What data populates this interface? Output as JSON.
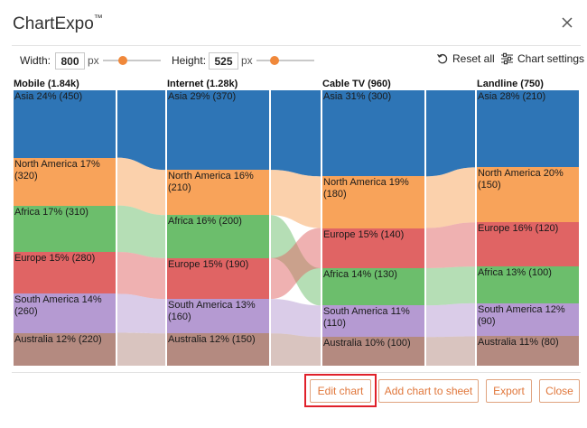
{
  "dialog": {
    "title": "ChartExpo",
    "trademark": "™"
  },
  "controls": {
    "width_label": "Width:",
    "width_value": "800",
    "height_label": "Height:",
    "height_value": "525",
    "unit": "px",
    "width_slider_fraction": 0.18,
    "height_slider_fraction": 0.15,
    "reset_label": "Reset all",
    "settings_label": "Chart settings"
  },
  "buttons": {
    "edit": "Edit chart",
    "add": "Add chart to sheet",
    "export": "Export",
    "close": "Close"
  },
  "colors": {
    "Asia": "#2e75b6",
    "North America": "#f8a35a",
    "Africa": "#6cbe6c",
    "Europe": "#e06464",
    "South America": "#b59ad2",
    "Australia": "#b48a80",
    "accent": "#f0883a",
    "highlight": "#e0202a"
  },
  "chart_data": {
    "type": "sankey",
    "region_order": [
      "Asia",
      "North America",
      "Africa",
      "Europe",
      "South America",
      "Australia"
    ],
    "columns": [
      {
        "header": "Mobile (1.84k)",
        "total": 1840,
        "segments": [
          {
            "region": "Asia",
            "label_line1": "Asia 24% (450)",
            "label_line2": "",
            "value": 450
          },
          {
            "region": "North America",
            "label_line1": "North America 17%",
            "label_line2": "(320)",
            "value": 320
          },
          {
            "region": "Africa",
            "label_line1": "Africa 17% (310)",
            "label_line2": "",
            "value": 310
          },
          {
            "region": "Europe",
            "label_line1": "Europe 15% (280)",
            "label_line2": "",
            "value": 280
          },
          {
            "region": "South America",
            "label_line1": "South America 14%",
            "label_line2": "(260)",
            "value": 260
          },
          {
            "region": "Australia",
            "label_line1": "Australia 12% (220)",
            "label_line2": "",
            "value": 220
          }
        ]
      },
      {
        "header": "Internet (1.28k)",
        "total": 1280,
        "segments": [
          {
            "region": "Asia",
            "label_line1": "Asia 29% (370)",
            "label_line2": "",
            "value": 370
          },
          {
            "region": "North America",
            "label_line1": "North America 16%",
            "label_line2": "(210)",
            "value": 210
          },
          {
            "region": "Africa",
            "label_line1": "Africa 16% (200)",
            "label_line2": "",
            "value": 200
          },
          {
            "region": "Europe",
            "label_line1": "Europe 15% (190)",
            "label_line2": "",
            "value": 190
          },
          {
            "region": "South America",
            "label_line1": "South America 13%",
            "label_line2": "(160)",
            "value": 160
          },
          {
            "region": "Australia",
            "label_line1": "Australia 12% (150)",
            "label_line2": "",
            "value": 150
          }
        ]
      },
      {
        "header": "Cable TV (960)",
        "total": 960,
        "segments": [
          {
            "region": "Asia",
            "label_line1": "Asia 31% (300)",
            "label_line2": "",
            "value": 300
          },
          {
            "region": "North America",
            "label_line1": "North America 19%",
            "label_line2": "(180)",
            "value": 180
          },
          {
            "region": "Europe",
            "label_line1": "Europe 15% (140)",
            "label_line2": "",
            "value": 140
          },
          {
            "region": "Africa",
            "label_line1": "Africa 14% (130)",
            "label_line2": "",
            "value": 130
          },
          {
            "region": "South America",
            "label_line1": "South America 11%",
            "label_line2": "(110)",
            "value": 110
          },
          {
            "region": "Australia",
            "label_line1": "Australia 10% (100)",
            "label_line2": "",
            "value": 100
          }
        ]
      },
      {
        "header": "Landline (750)",
        "total": 750,
        "segments": [
          {
            "region": "Asia",
            "label_line1": "Asia 28% (210)",
            "label_line2": "",
            "value": 210
          },
          {
            "region": "North America",
            "label_line1": "North America 20%",
            "label_line2": "(150)",
            "value": 150
          },
          {
            "region": "Europe",
            "label_line1": "Europe 16% (120)",
            "label_line2": "",
            "value": 120
          },
          {
            "region": "Africa",
            "label_line1": "Africa 13% (100)",
            "label_line2": "",
            "value": 100
          },
          {
            "region": "South America",
            "label_line1": "South America 12%",
            "label_line2": "(90)",
            "value": 90
          },
          {
            "region": "Australia",
            "label_line1": "Australia 11% (80)",
            "label_line2": "",
            "value": 80
          }
        ]
      }
    ]
  }
}
